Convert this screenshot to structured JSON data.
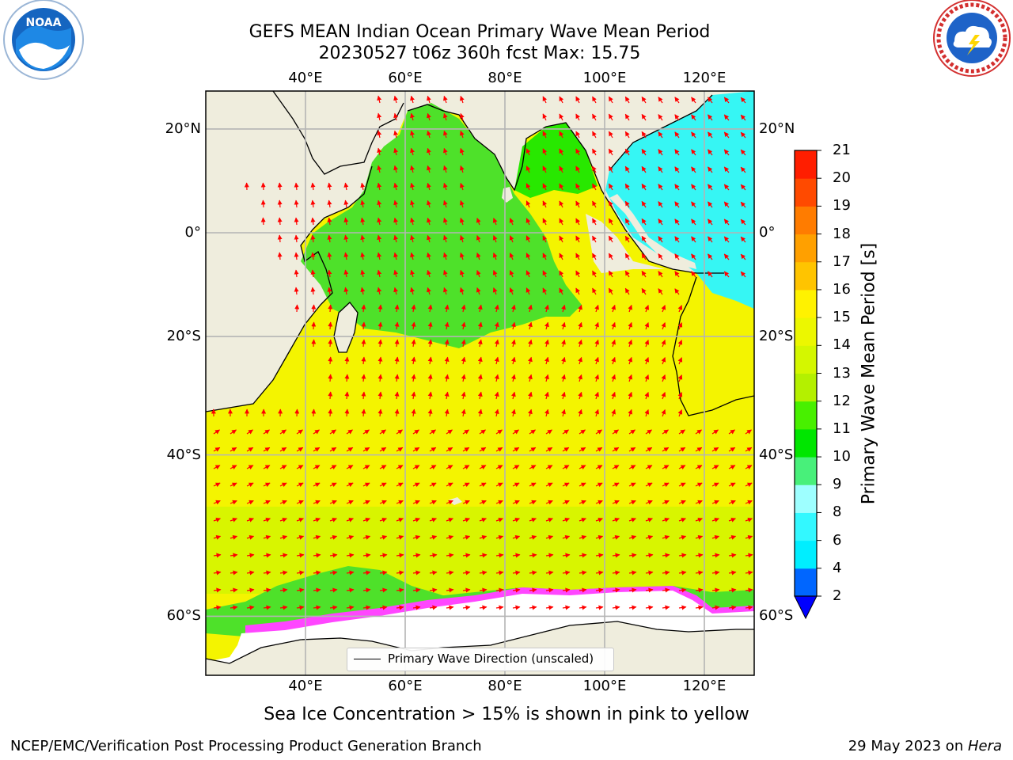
{
  "title": {
    "line1": "GEFS MEAN Indian Ocean Primary Wave Mean Period",
    "line2": "20230527 t06z 360h fcst   Max: 15.75"
  },
  "map": {
    "lon_ticks_top": [
      "40°E",
      "60°E",
      "80°E",
      "100°E",
      "120°E"
    ],
    "lon_ticks_bottom": [
      "40°E",
      "60°E",
      "80°E",
      "100°E",
      "120°E"
    ],
    "lat_ticks_left": [
      "20°N",
      "0°",
      "20°S",
      "40°S",
      "60°S"
    ],
    "lat_ticks_right": [
      "20°N",
      "0°",
      "20°S",
      "40°S",
      "60°S"
    ],
    "lon_values": [
      40,
      60,
      80,
      100,
      120
    ],
    "lat_values": [
      20,
      0,
      -20,
      -40,
      -60
    ],
    "colors": {
      "land": "#efeddd",
      "ocean_southern": "#f4f400",
      "ocean_southern_green": "#d8f500",
      "ocean_tropical_green": "#4ee12a",
      "ocean_bright_green": "#28e800",
      "ocean_cyan": "#36f6f4",
      "sea_ice_white": "#ffffff",
      "sea_ice_pink": "#ff46ff",
      "arrow": "#ff0000",
      "grid": "#b4b4b4"
    }
  },
  "legend": {
    "label": "Primary Wave Direction (unscaled)"
  },
  "colorbar": {
    "label": "Primary Wave Mean Period [s]",
    "ticks": [
      "2",
      "4",
      "6",
      "8",
      "9",
      "10",
      "11",
      "12",
      "13",
      "14",
      "15",
      "16",
      "17",
      "18",
      "19",
      "20",
      "21"
    ],
    "colors": [
      "#0066ff",
      "#00eeff",
      "#33f8ff",
      "#9effff",
      "#48f07a",
      "#00e600",
      "#48f000",
      "#b4f000",
      "#d4f700",
      "#ecf700",
      "#fff200",
      "#ffc400",
      "#ffa000",
      "#ff7c00",
      "#ff4a00",
      "#ff1e00"
    ],
    "extend_color": "#0000ff"
  },
  "caption": "Sea Ice Concentration > 15% is shown in pink to yellow",
  "footer": {
    "left": "NCEP/EMC/Verification Post Processing Product Generation Branch",
    "right_prefix": "29 May 2023 on ",
    "right_italic": "Hera"
  },
  "logos": {
    "noaa_text": "NOAA"
  }
}
